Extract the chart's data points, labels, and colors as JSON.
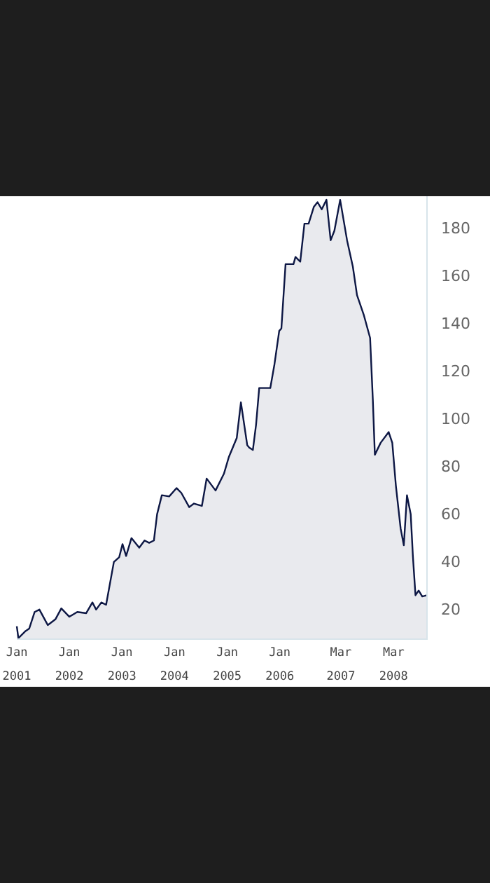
{
  "chart_data": {
    "type": "area",
    "x": [
      "2001-01-01",
      "2001-01-12",
      "2001-03-03",
      "2001-03-28",
      "2001-05-05",
      "2001-06-07",
      "2001-08-04",
      "2001-09-27",
      "2001-11-06",
      "2002-01-01",
      "2002-02-25",
      "2002-04-28",
      "2002-06-10",
      "2002-07-06",
      "2002-08-11",
      "2002-09-13",
      "2002-11-06",
      "2002-12-13",
      "2003-01-05",
      "2003-01-30",
      "2003-03-08",
      "2003-05-01",
      "2003-06-07",
      "2003-07-09",
      "2003-08-11",
      "2003-09-02",
      "2003-10-05",
      "2003-11-25",
      "2004-01-15",
      "2004-02-17",
      "2004-04-12",
      "2004-05-15",
      "2004-07-09",
      "2004-08-11",
      "2004-10-12",
      "2004-12-09",
      "2005-01-12",
      "2005-03-08",
      "2005-04-06",
      "2005-05-20",
      "2005-06-03",
      "2005-06-28",
      "2005-07-20",
      "2005-08-11",
      "2005-09-24",
      "2005-10-27",
      "2005-11-25",
      "2005-12-28",
      "2006-01-12",
      "2006-02-10",
      "2006-04-06",
      "2006-04-20",
      "2006-05-23",
      "2006-06-21",
      "2006-07-20",
      "2006-08-25",
      "2006-09-20",
      "2006-10-19",
      "2006-11-21",
      "2006-12-20",
      "2007-01-15",
      "2007-02-24",
      "2007-04-13",
      "2007-05-23",
      "2007-06-21",
      "2007-08-08",
      "2007-09-20",
      "2007-10-09",
      "2007-10-23",
      "2007-12-02",
      "2008-01-27",
      "2008-02-21",
      "2008-03-17",
      "2008-04-19",
      "2008-05-11",
      "2008-06-02",
      "2008-06-28",
      "2008-07-13",
      "2008-07-31",
      "2008-08-22",
      "2008-09-16",
      "2008-10-19"
    ],
    "series": [
      {
        "color": "#0d1744",
        "values": [
          13,
          8,
          11,
          12,
          19,
          20,
          13.5,
          16,
          20.5,
          17,
          19,
          18.5,
          23,
          20,
          23,
          22,
          40,
          42,
          47.5,
          42.5,
          50,
          46,
          49,
          48,
          49,
          60,
          68,
          67.5,
          71,
          69,
          63,
          64.5,
          63.5,
          75,
          70,
          77,
          84,
          92,
          107,
          89,
          88,
          87,
          97.5,
          113,
          113,
          113,
          123,
          137,
          138,
          165,
          165,
          168,
          166,
          182,
          182,
          189,
          191,
          188,
          192,
          175,
          179,
          192,
          175,
          164,
          152,
          143.5,
          134,
          108,
          85,
          90,
          94.5,
          90,
          72,
          54,
          47,
          68,
          60,
          42.5,
          26,
          28,
          25.5,
          26
        ]
      }
    ],
    "xlim": [
      "2001-01-01",
      "2008-10-19"
    ],
    "xticks": [
      {
        "value": "2001-01-01",
        "label": "Jan 2001"
      },
      {
        "value": "2002-01-01",
        "label": "Jan 2002"
      },
      {
        "value": "2003-01-01",
        "label": "Jan 2003"
      },
      {
        "value": "2004-01-01",
        "label": "Jan 2004"
      },
      {
        "value": "2005-01-01",
        "label": "Jan 2005"
      },
      {
        "value": "2006-01-01",
        "label": "Jan 2006"
      },
      {
        "value": "2007-03-01",
        "label": "Mar 2007"
      },
      {
        "value": "2008-03-01",
        "label": "Mar 2008"
      }
    ],
    "ylim": [
      7.6,
      193.5
    ],
    "yticks": [
      20,
      40,
      60,
      80,
      100,
      120,
      140,
      160,
      180
    ],
    "grid": false
  }
}
